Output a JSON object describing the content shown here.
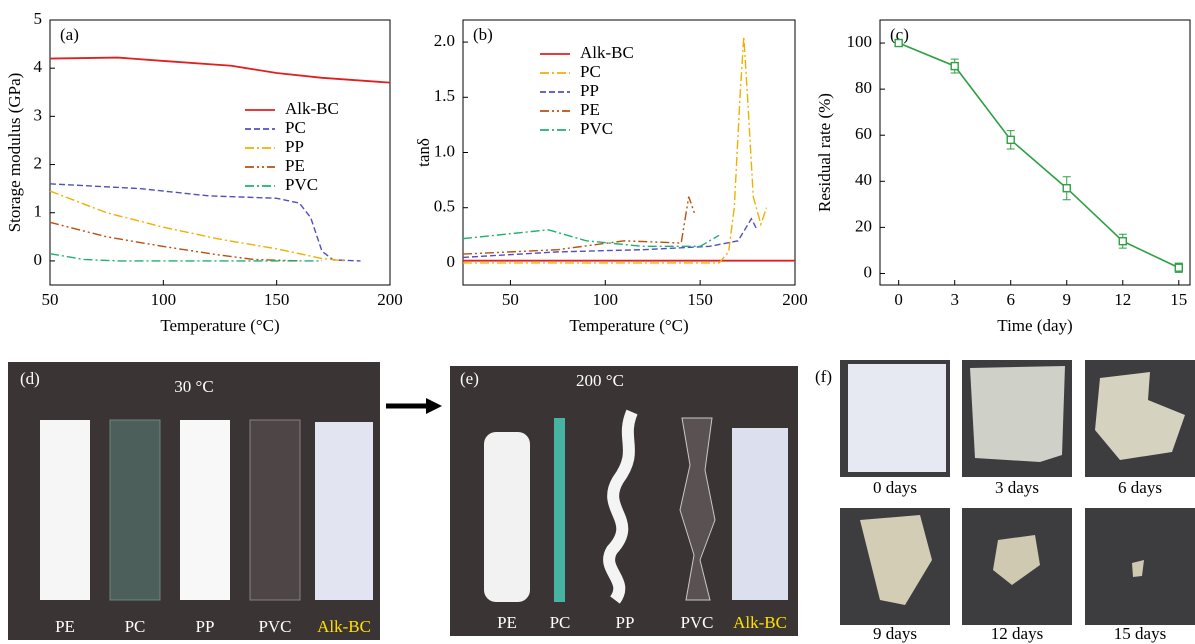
{
  "chart_data": [
    {
      "type": "line",
      "panel_label": "(a)",
      "x_label": "Temperature (°C)",
      "y_label": "Storage modulus (GPa)",
      "xlim": [
        50,
        200
      ],
      "ylim": [
        -0.5,
        5
      ],
      "xticks": [
        50,
        100,
        150,
        200
      ],
      "yticks": [
        0,
        1,
        2,
        3,
        4,
        5
      ],
      "legend": "center right",
      "series": [
        {
          "name": "Alk-BC",
          "color": "#e02020",
          "linestyle": "solid",
          "x": [
            50,
            80,
            100,
            130,
            150,
            170,
            200
          ],
          "values": [
            4.2,
            4.22,
            4.15,
            4.05,
            3.9,
            3.8,
            3.7
          ]
        },
        {
          "name": "PC",
          "color": "#5050c0",
          "linestyle": "dashed",
          "x": [
            50,
            90,
            120,
            150,
            160,
            165,
            170,
            175,
            187
          ],
          "values": [
            1.6,
            1.5,
            1.35,
            1.3,
            1.2,
            0.9,
            0.2,
            0.02,
            0
          ]
        },
        {
          "name": "PP",
          "color": "#f0b000",
          "linestyle": "dashdot",
          "x": [
            50,
            75,
            100,
            125,
            150,
            170,
            180
          ],
          "values": [
            1.45,
            1.0,
            0.7,
            0.45,
            0.25,
            0.05,
            0
          ]
        },
        {
          "name": "PE",
          "color": "#b85010",
          "linestyle": "dashdotdot",
          "x": [
            50,
            75,
            100,
            125,
            140,
            160
          ],
          "values": [
            0.8,
            0.5,
            0.3,
            0.12,
            0.03,
            0
          ]
        },
        {
          "name": "PVC",
          "color": "#20b070",
          "linestyle": "dashdot",
          "x": [
            50,
            65,
            80,
            170
          ],
          "values": [
            0.15,
            0.03,
            0,
            0
          ]
        }
      ]
    },
    {
      "type": "line",
      "panel_label": "(b)",
      "x_label": "Temperature (°C)",
      "y_label": "tanδ",
      "xlim": [
        25,
        200
      ],
      "ylim": [
        -0.2,
        2.2
      ],
      "xticks": [
        50,
        100,
        150,
        200
      ],
      "yticks": [
        0,
        0.5,
        {
          "value": 1,
          "label": "1.0"
        },
        1.5,
        {
          "value": 2,
          "label": "2.0"
        }
      ],
      "legend": "upper left",
      "series": [
        {
          "name": "Alk-BC",
          "color": "#e02020",
          "linestyle": "solid",
          "x": [
            25,
            200
          ],
          "values": [
            0.02,
            0.02
          ]
        },
        {
          "name": "PC",
          "color": "#f0b000",
          "linestyle": "dashdot",
          "x": [
            25,
            160,
            165,
            168,
            171,
            173,
            175,
            178,
            182,
            185
          ],
          "values": [
            0,
            0,
            0.1,
            0.5,
            1.5,
            2.05,
            1.5,
            0.6,
            0.35,
            0.5
          ]
        },
        {
          "name": "PP",
          "color": "#5050c0",
          "linestyle": "dashed",
          "x": [
            25,
            75,
            120,
            155,
            170,
            177,
            180
          ],
          "values": [
            0.05,
            0.1,
            0.12,
            0.15,
            0.2,
            0.4,
            0.3
          ]
        },
        {
          "name": "PE",
          "color": "#b85010",
          "linestyle": "dashdotdot",
          "x": [
            25,
            75,
            110,
            140,
            144,
            147
          ],
          "values": [
            0.08,
            0.12,
            0.2,
            0.18,
            0.6,
            0.45
          ]
        },
        {
          "name": "PVC",
          "color": "#20b070",
          "linestyle": "dashdot",
          "x": [
            25,
            70,
            90,
            120,
            150,
            160
          ],
          "values": [
            0.22,
            0.3,
            0.2,
            0.15,
            0.15,
            0.25
          ]
        }
      ]
    },
    {
      "type": "errorline",
      "panel_label": "(c)",
      "x_label": "Time (day)",
      "y_label": "Residual rate (%)",
      "xlim": [
        -1,
        15.6
      ],
      "ylim": [
        -5,
        110
      ],
      "xticks": [
        0,
        3,
        6,
        9,
        12,
        15
      ],
      "yticks": [
        0,
        20,
        40,
        60,
        80,
        100
      ],
      "x": [
        0,
        3,
        6,
        9,
        12,
        15
      ],
      "values": [
        100,
        90,
        58,
        37,
        14,
        2.5
      ],
      "errors": [
        1,
        3,
        4,
        5,
        3,
        2
      ],
      "color": "#2ea043"
    }
  ],
  "photos": {
    "d": {
      "label": "(d)",
      "temperature": "30 °C",
      "samples": [
        "PE",
        "PC",
        "PP",
        "PVC",
        "Alk-BC"
      ]
    },
    "e": {
      "label": "(e)",
      "temperature": "200 °C",
      "samples": [
        "PE",
        "PC",
        "PP",
        "PVC",
        "Alk-BC"
      ]
    },
    "f": {
      "label": "(f)",
      "days": [
        "0 days",
        "3 days",
        "6 days",
        "9 days",
        "12 days",
        "15 days"
      ]
    }
  }
}
